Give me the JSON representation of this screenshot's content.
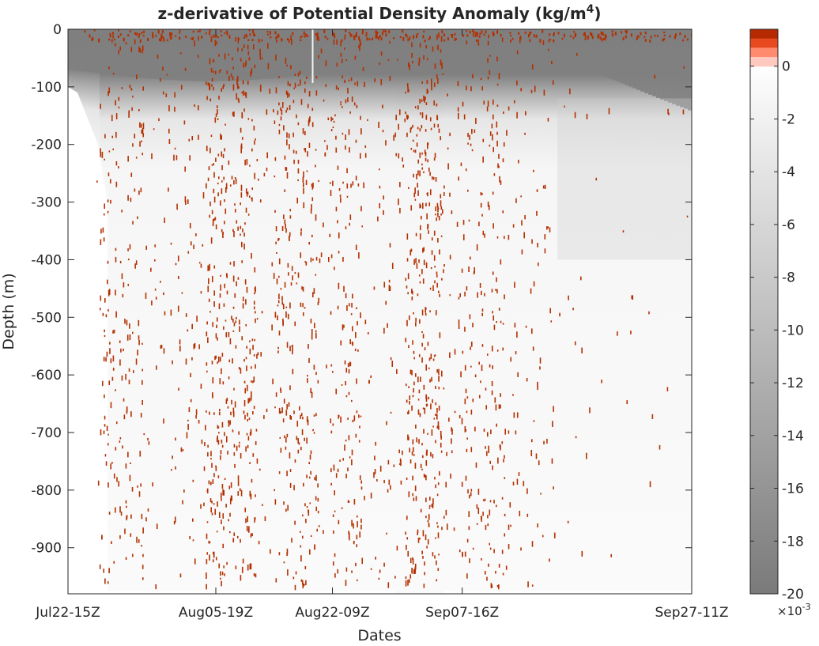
{
  "chart_data": {
    "type": "heatmap",
    "title": "z-derivative of Potential Density Anomaly (kg/m",
    "title_superscript": "4",
    "title_suffix": ")",
    "xlabel": "Dates",
    "ylabel": "Depth  (m)",
    "x_ticks": [
      "Jul22-15Z",
      "Aug05-19Z",
      "Aug22-09Z",
      "Sep07-16Z",
      "Sep27-11Z"
    ],
    "x_tick_positions": [
      0,
      0.237,
      0.424,
      0.632,
      1.0
    ],
    "y_ticks": [
      0,
      -100,
      -200,
      -300,
      -400,
      -500,
      -600,
      -700,
      -800,
      -900
    ],
    "y_tick_labels": [
      "0",
      "-100",
      "-200",
      "-300",
      "-400",
      "-500",
      "-600",
      "-700",
      "-800",
      "-900"
    ],
    "ylim": [
      -980,
      0
    ],
    "colorbar": {
      "ticks": [
        0,
        -2,
        -4,
        -6,
        -8,
        -10,
        -12,
        -14,
        -16,
        -18,
        -20
      ],
      "tick_labels": [
        "0",
        "-2",
        "-4",
        "-6",
        "-8",
        "-10",
        "-12",
        "-14",
        "-16",
        "-18",
        "-20"
      ],
      "range": [
        -20,
        1.4
      ],
      "scale_label": "×10",
      "scale_exponent": "-3",
      "negative_colormap": [
        "#ffffff",
        "#7a7a7a"
      ],
      "positive_colors": [
        "#ffc9c0",
        "#ff8a6e",
        "#e84a20",
        "#b52a00"
      ]
    },
    "colors": {
      "surface_gray": "#7f7f7f",
      "positive_speckle": "#b33000",
      "background": "#ffffff",
      "axis": "#262626"
    },
    "grid": false
  }
}
